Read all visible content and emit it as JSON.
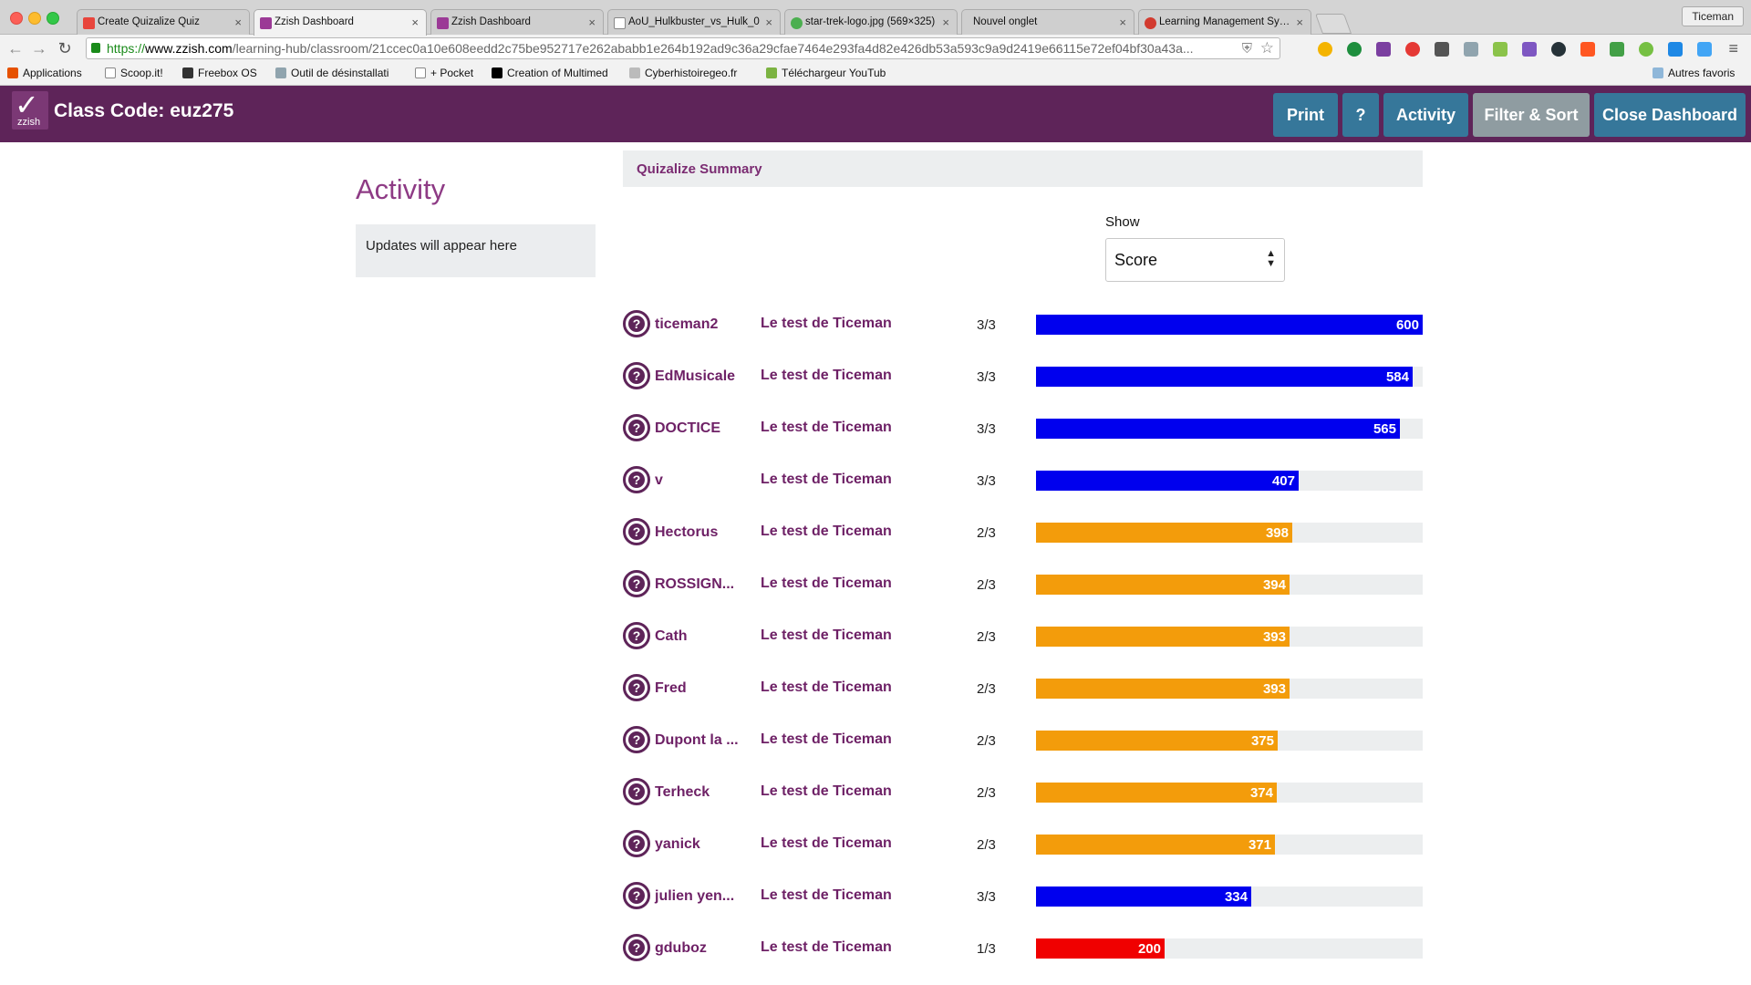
{
  "browser": {
    "tabs": [
      {
        "title": "Create Quizalize Quiz",
        "color": "#e8453c"
      },
      {
        "title": "Zzish Dashboard",
        "color": "#9b3a96"
      },
      {
        "title": "Zzish Dashboard",
        "color": "#9b3a96"
      },
      {
        "title": "AoU_Hulkbuster_vs_Hulk_0",
        "color": "#ffffff"
      },
      {
        "title": "star-trek-logo.jpg (569×325)",
        "color": "#4caf50"
      },
      {
        "title": "Nouvel onglet",
        "color": ""
      },
      {
        "title": "Learning Management Syste",
        "color": "#d23b2f"
      }
    ],
    "profile": "Ticeman",
    "url": {
      "scheme": "https://",
      "host": "www.zzish.com",
      "path": "/learning-hub/classroom/21ccec0a10e608eedd2c75be952717e262ababb1e264b192ad9c36a29cfae7464e293fa4d82e426db53a593c9a9d2419e66115e72ef04bf30a43a..."
    },
    "bookmarks": [
      "Applications",
      "Scoop.it!",
      "Freebox OS",
      "Outil de désinstallati",
      "+ Pocket",
      "Creation of Multimed",
      "Cyberhistoiregeo.fr",
      "Téléchargeur YouTub",
      "Autres favoris"
    ]
  },
  "header": {
    "logo_text": "zzish",
    "class_code": "Class Code: euz275",
    "buttons": {
      "print": "Print",
      "help": "?",
      "activity": "Activity",
      "filter_sort": "Filter & Sort",
      "close": "Close Dashboard"
    }
  },
  "activity": {
    "title": "Activity",
    "empty_message": "Updates will appear here"
  },
  "summary": {
    "title": "Quizalize Summary",
    "show_label": "Show",
    "show_selected": "Score",
    "max_score": 600,
    "rows": [
      {
        "name": "ticeman2",
        "quiz": "Le test de Ticeman",
        "result": "3/3",
        "score": 600,
        "status": "blue"
      },
      {
        "name": "EdMusicale",
        "quiz": "Le test de Ticeman",
        "result": "3/3",
        "score": 584,
        "status": "blue"
      },
      {
        "name": "DOCTICE",
        "quiz": "Le test de Ticeman",
        "result": "3/3",
        "score": 565,
        "status": "blue"
      },
      {
        "name": "v",
        "quiz": "Le test de Ticeman",
        "result": "3/3",
        "score": 407,
        "status": "blue"
      },
      {
        "name": "Hectorus",
        "quiz": "Le test de Ticeman",
        "result": "2/3",
        "score": 398,
        "status": "orange"
      },
      {
        "name": "ROSSIGN...",
        "quiz": "Le test de Ticeman",
        "result": "2/3",
        "score": 394,
        "status": "orange"
      },
      {
        "name": "Cath",
        "quiz": "Le test de Ticeman",
        "result": "2/3",
        "score": 393,
        "status": "orange"
      },
      {
        "name": "Fred",
        "quiz": "Le test de Ticeman",
        "result": "2/3",
        "score": 393,
        "status": "orange"
      },
      {
        "name": "Dupont la ...",
        "quiz": "Le test de Ticeman",
        "result": "2/3",
        "score": 375,
        "status": "orange"
      },
      {
        "name": "Terheck",
        "quiz": "Le test de Ticeman",
        "result": "2/3",
        "score": 374,
        "status": "orange"
      },
      {
        "name": "yanick",
        "quiz": "Le test de Ticeman",
        "result": "2/3",
        "score": 371,
        "status": "orange"
      },
      {
        "name": "julien yen...",
        "quiz": "Le test de Ticeman",
        "result": "3/3",
        "score": 334,
        "status": "blue"
      },
      {
        "name": "gduboz",
        "quiz": "Le test de Ticeman",
        "result": "1/3",
        "score": 200,
        "status": "red"
      }
    ]
  },
  "icons": {
    "row_icon": "question-circle-icon",
    "help": "question-mark"
  },
  "colors": {
    "header_bg": "#5e2459",
    "button_bg": "#36779a",
    "button_disabled_bg": "#8f9ca1",
    "accent_text": "#6e2166",
    "bar_full": "#0000ee",
    "bar_partial": "#f39c0b",
    "bar_low": "#f00000"
  }
}
